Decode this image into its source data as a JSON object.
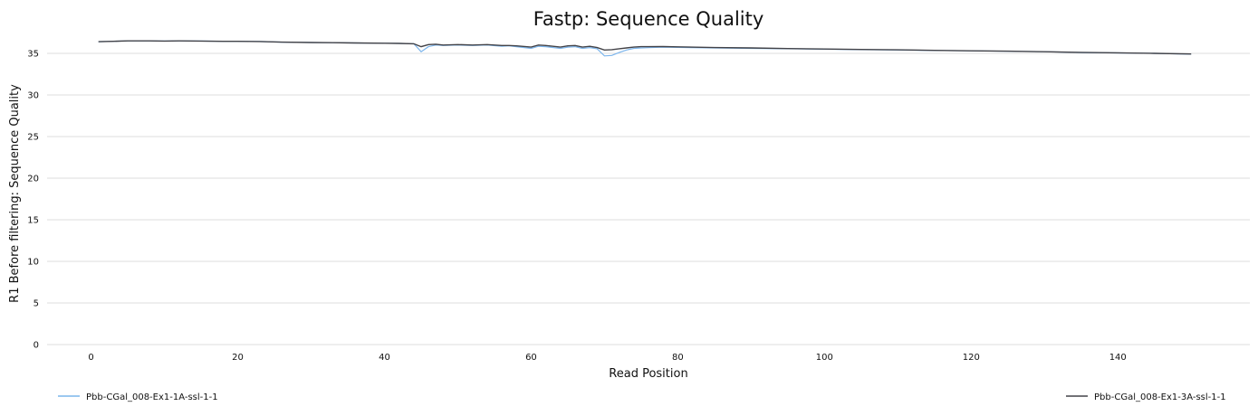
{
  "chart_data": {
    "type": "line",
    "title": "Fastp: Sequence Quality",
    "xlabel": "Read Position",
    "ylabel": "R1 Before filtering: Sequence Quality",
    "xlim": [
      -6,
      158
    ],
    "ylim": [
      0,
      37.5
    ],
    "x_ticks": [
      0,
      20,
      40,
      60,
      80,
      100,
      120,
      140
    ],
    "y_ticks": [
      0,
      5,
      10,
      15,
      20,
      25,
      30,
      35
    ],
    "grid": true,
    "legend_placement": "bottom",
    "series": [
      {
        "name": "Pbb-CGal_008-Ex1-1A-ssl-1-1",
        "color": "#7cb5ec",
        "x": [
          1,
          3,
          5,
          8,
          10,
          12,
          15,
          18,
          20,
          23,
          26,
          30,
          33,
          36,
          40,
          42,
          44,
          45,
          46,
          47,
          48,
          50,
          52,
          54,
          56,
          57,
          58,
          60,
          61,
          62,
          64,
          65,
          66,
          67,
          68,
          69,
          70,
          71,
          72,
          73,
          74,
          75,
          76,
          78,
          80,
          85,
          90,
          95,
          100,
          105,
          110,
          115,
          120,
          125,
          130,
          135,
          140,
          145,
          150
        ],
        "y": [
          36.4,
          36.45,
          36.5,
          36.5,
          36.48,
          36.5,
          36.48,
          36.45,
          36.45,
          36.42,
          36.35,
          36.3,
          36.28,
          36.25,
          36.22,
          36.2,
          36.15,
          35.2,
          35.8,
          36.0,
          35.95,
          36.0,
          35.95,
          36.0,
          35.85,
          35.9,
          35.8,
          35.6,
          35.85,
          35.8,
          35.6,
          35.75,
          35.8,
          35.6,
          35.7,
          35.55,
          34.7,
          34.75,
          35.1,
          35.4,
          35.6,
          35.65,
          35.7,
          35.75,
          35.72,
          35.65,
          35.6,
          35.55,
          35.5,
          35.45,
          35.4,
          35.35,
          35.3,
          35.25,
          35.2,
          35.1,
          35.05,
          35.0,
          34.9
        ]
      },
      {
        "name": "Pbb-CGal_008-Ex1-3A-ssl-1-1",
        "color": "#434348",
        "x": [
          1,
          3,
          5,
          8,
          10,
          12,
          15,
          18,
          20,
          23,
          26,
          30,
          33,
          36,
          40,
          42,
          44,
          45,
          46,
          47,
          48,
          50,
          52,
          54,
          56,
          57,
          58,
          60,
          61,
          62,
          64,
          65,
          66,
          67,
          68,
          69,
          70,
          71,
          72,
          73,
          74,
          75,
          76,
          78,
          80,
          85,
          90,
          95,
          100,
          105,
          110,
          115,
          120,
          125,
          130,
          135,
          140,
          145,
          150
        ],
        "y": [
          36.4,
          36.45,
          36.5,
          36.5,
          36.48,
          36.5,
          36.48,
          36.45,
          36.45,
          36.42,
          36.35,
          36.3,
          36.28,
          36.25,
          36.22,
          36.2,
          36.15,
          35.8,
          36.05,
          36.1,
          36.0,
          36.05,
          36.0,
          36.05,
          35.95,
          35.95,
          35.9,
          35.75,
          36.0,
          35.95,
          35.75,
          35.9,
          35.95,
          35.75,
          35.85,
          35.7,
          35.4,
          35.45,
          35.55,
          35.65,
          35.75,
          35.8,
          35.8,
          35.82,
          35.78,
          35.7,
          35.65,
          35.58,
          35.52,
          35.47,
          35.42,
          35.36,
          35.3,
          35.26,
          35.2,
          35.12,
          35.07,
          35.0,
          34.92
        ]
      }
    ]
  }
}
